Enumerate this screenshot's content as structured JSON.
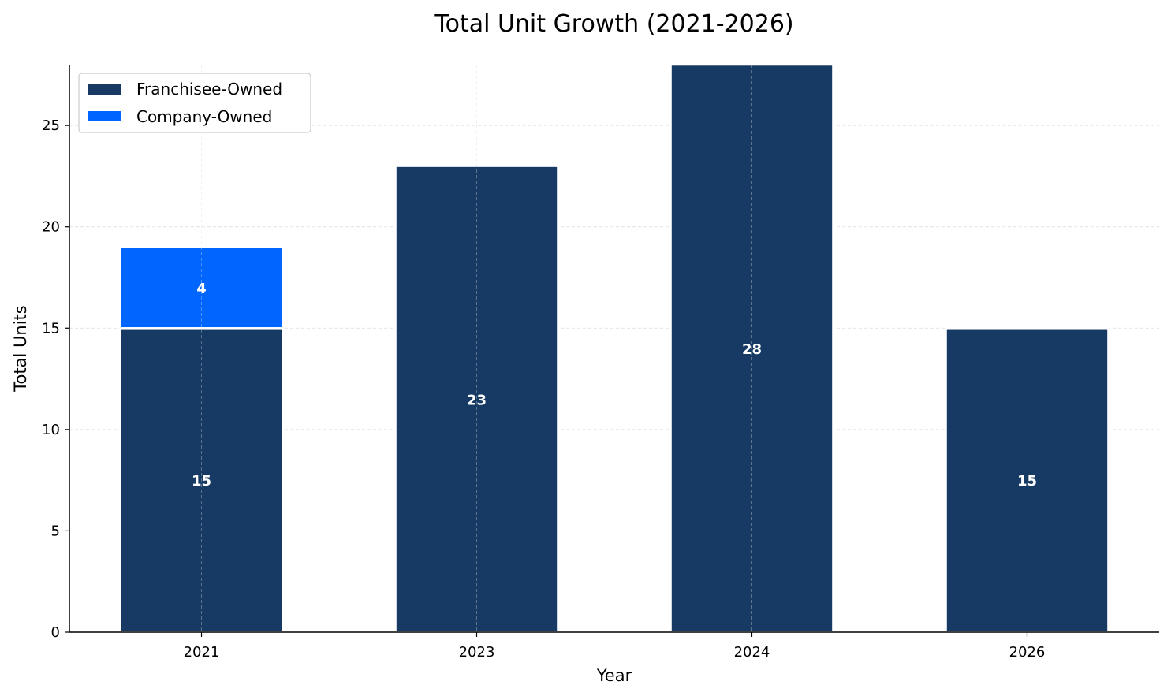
{
  "chart_data": {
    "type": "bar",
    "stacked": true,
    "title": "Total Unit Growth (2021-2026)",
    "xlabel": "Year",
    "ylabel": "Total Units",
    "categories": [
      "2021",
      "2023",
      "2024",
      "2026"
    ],
    "series": [
      {
        "name": "Franchisee-Owned",
        "values": [
          15,
          23,
          28,
          15
        ],
        "color": "#163a63"
      },
      {
        "name": "Company-Owned",
        "values": [
          4,
          0,
          0,
          0
        ],
        "color": "#0066ff"
      }
    ],
    "ylim": [
      0,
      28
    ],
    "yticks": [
      0,
      5,
      10,
      15,
      20,
      25
    ],
    "grid": true,
    "legend_position": "top-left"
  }
}
